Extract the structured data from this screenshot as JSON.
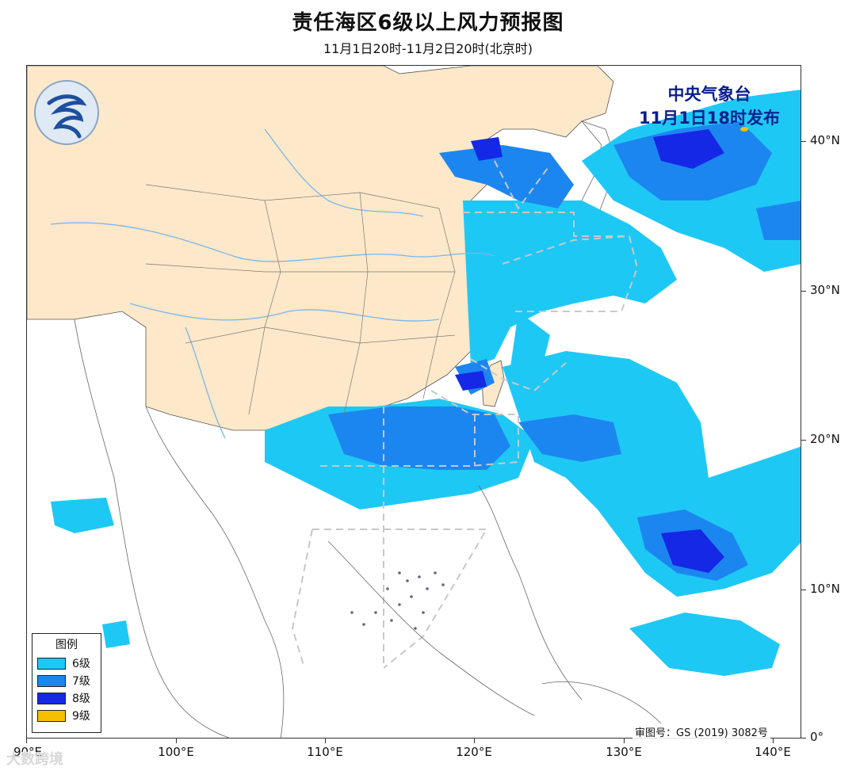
{
  "header": {
    "title": "责任海区6级以上风力预报图",
    "subtitle": "11月1日20时-11月2日20时(北京时)"
  },
  "issuer": {
    "name": "中央气象台",
    "issued": "11月1日18时发布"
  },
  "axes": {
    "latitude_labels": [
      "40°N",
      "30°N",
      "20°N",
      "10°N",
      "0°"
    ],
    "longitude_labels": [
      "90°E",
      "100°E",
      "110°E",
      "120°E",
      "130°E",
      "140°E"
    ]
  },
  "legend": {
    "title": "图例",
    "items": [
      {
        "label": "6级",
        "color": "#1ec8f5"
      },
      {
        "label": "7级",
        "color": "#1c86f0"
      },
      {
        "label": "8级",
        "color": "#1428e6"
      },
      {
        "label": "9级",
        "color": "#f5c000"
      }
    ]
  },
  "review_number": "审图号：GS (2019) 3082号",
  "watermark": "大数跨境",
  "colors": {
    "land_china": "#fde8c9",
    "sea": "#ffffff",
    "grade6": "#1ec8f5",
    "grade7": "#1c86f0",
    "grade8": "#1428e6",
    "grade9": "#f5c000",
    "boundary_dash": "#c8c8c8",
    "river": "#7ab6e8"
  },
  "icons": {
    "logo": "cma-logo-icon"
  }
}
